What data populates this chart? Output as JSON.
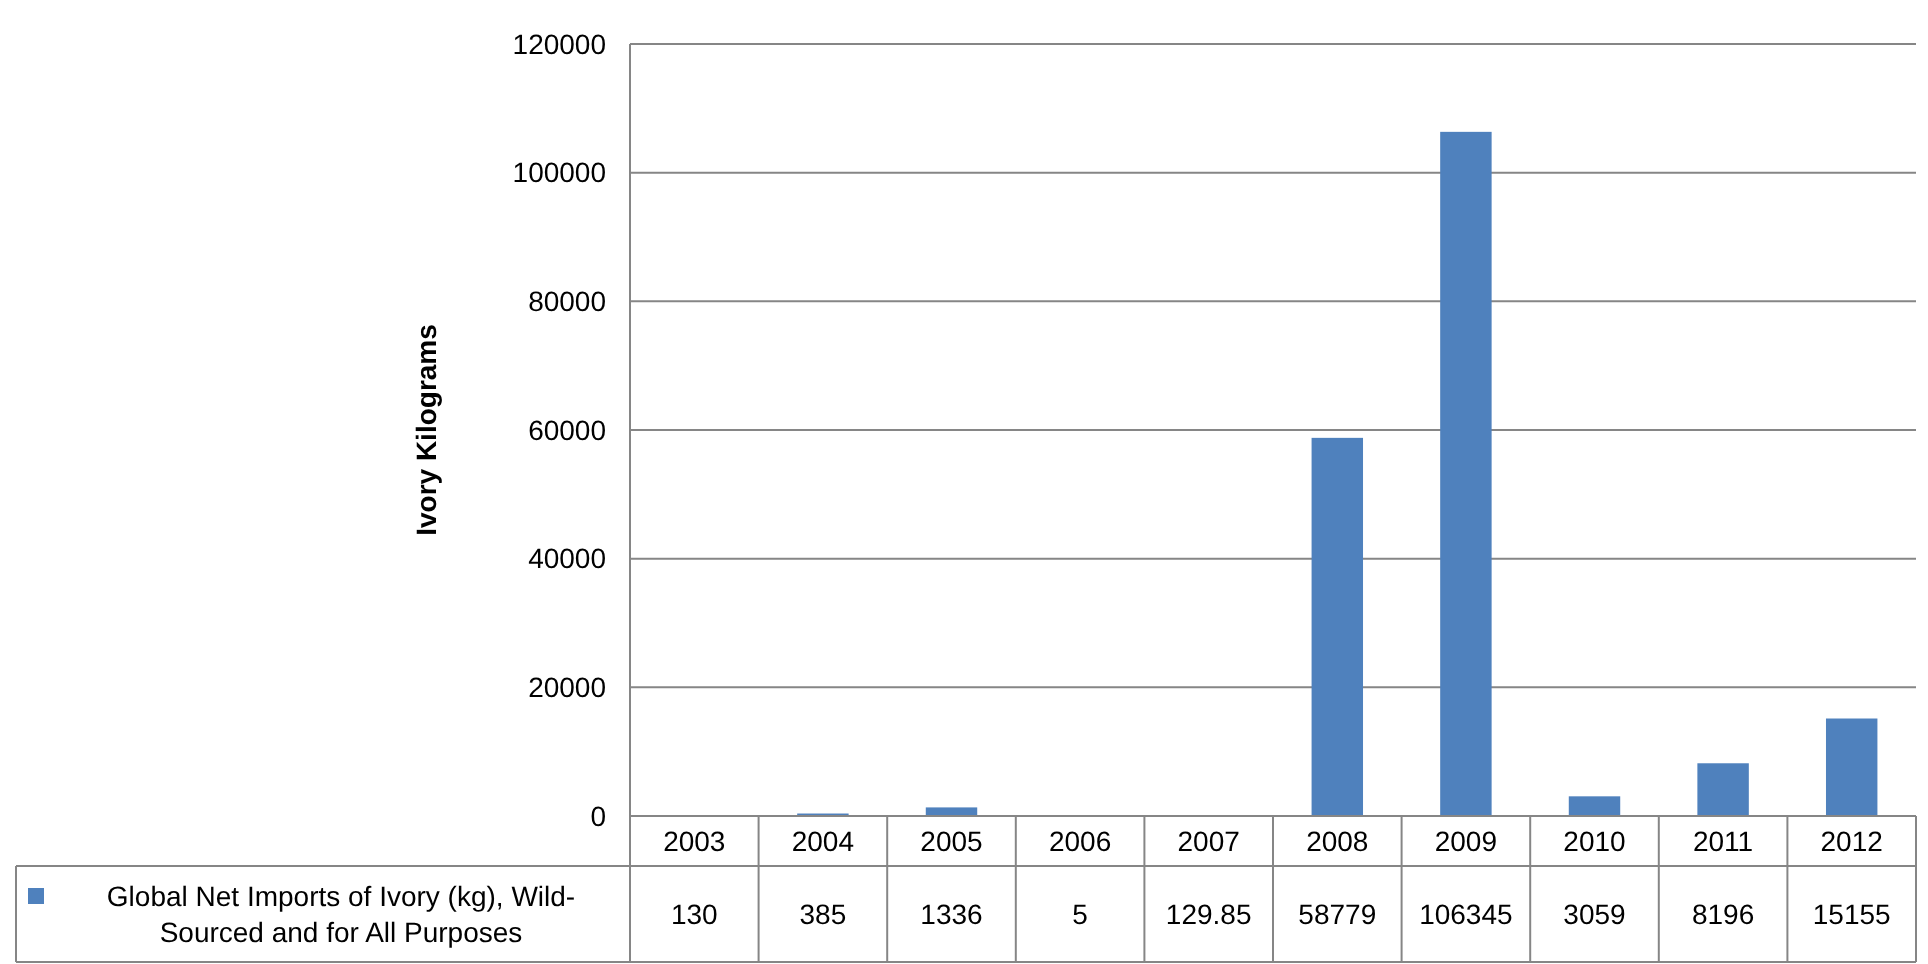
{
  "chart_data": {
    "type": "bar",
    "ylabel": "Ivory Kilograms",
    "categories": [
      "2003",
      "2004",
      "2005",
      "2006",
      "2007",
      "2008",
      "2009",
      "2010",
      "2011",
      "2012"
    ],
    "series": [
      {
        "name": "Global Net Imports of Ivory (kg), Wild-Sourced and for All Purposes",
        "color": "#4f81bd",
        "values": [
          130,
          385,
          1336,
          5,
          129.85,
          58779,
          106345,
          3059,
          8196,
          15155
        ]
      }
    ],
    "ylim": [
      0,
      120000
    ],
    "yticks": [
      0,
      20000,
      40000,
      60000,
      80000,
      100000,
      120000
    ],
    "grid": "y",
    "data_labels": true,
    "legend": "bottom"
  }
}
